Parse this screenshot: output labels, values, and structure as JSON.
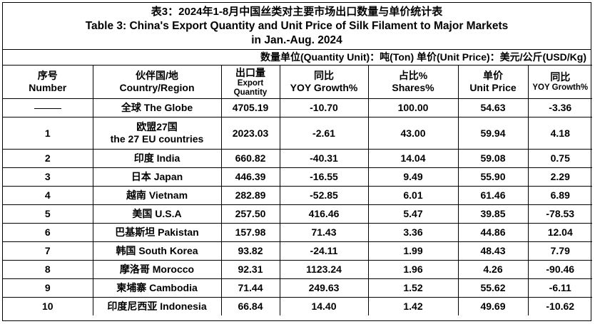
{
  "title": {
    "zh": "表3：2024年1-8月中国丝类对主要市场出口数量与单价统计表",
    "en_line1": "Table 3: China's Export Quantity and Unit Price of Silk Filament to Major Markets",
    "en_line2": "in Jan.-Aug. 2024"
  },
  "units_note": "数量单位(Quantity Unit)：吨(Ton)  单价(Unit Price)：美元/公斤(USD/Kg)",
  "headers": [
    {
      "zh": "序号",
      "en": "Number"
    },
    {
      "zh": "伙伴国/地",
      "en": "Country/Region"
    },
    {
      "zh": "出口量",
      "en": "Export Quantity"
    },
    {
      "zh": "同比",
      "en": "YOY Growth%"
    },
    {
      "zh": "占比%",
      "en": "Shares%"
    },
    {
      "zh": "单价",
      "en": "Unit Price"
    },
    {
      "zh": "同比",
      "en": "YOY Growth%"
    }
  ],
  "rows": [
    {
      "no": "",
      "country": "全球 The Globe",
      "country2": "",
      "qty": "4705.19",
      "yoy": "-10.70",
      "share": "100.00",
      "price": "54.63",
      "price_yoy": "-3.36"
    },
    {
      "no": "1",
      "country": "欧盟27国",
      "country2": "the 27 EU countries",
      "qty": "2023.03",
      "yoy": "-2.61",
      "share": "43.00",
      "price": "59.94",
      "price_yoy": "4.18"
    },
    {
      "no": "2",
      "country": "印度 India",
      "country2": "",
      "qty": "660.82",
      "yoy": "-40.31",
      "share": "14.04",
      "price": "59.08",
      "price_yoy": "0.75"
    },
    {
      "no": "3",
      "country": "日本 Japan",
      "country2": "",
      "qty": "446.39",
      "yoy": "-16.55",
      "share": "9.49",
      "price": "55.90",
      "price_yoy": "2.29"
    },
    {
      "no": "4",
      "country": "越南 Vietnam",
      "country2": "",
      "qty": "282.89",
      "yoy": "-52.85",
      "share": "6.01",
      "price": "61.46",
      "price_yoy": "6.89"
    },
    {
      "no": "5",
      "country": "美国 U.S.A",
      "country2": "",
      "qty": "257.50",
      "yoy": "416.46",
      "share": "5.47",
      "price": "39.85",
      "price_yoy": "-78.53"
    },
    {
      "no": "6",
      "country": "巴基斯坦 Pakistan",
      "country2": "",
      "qty": "157.98",
      "yoy": "71.43",
      "share": "3.36",
      "price": "44.86",
      "price_yoy": "12.04"
    },
    {
      "no": "7",
      "country": "韩国 South Korea",
      "country2": "",
      "qty": "93.82",
      "yoy": "-24.11",
      "share": "1.99",
      "price": "48.43",
      "price_yoy": "7.79"
    },
    {
      "no": "8",
      "country": "摩洛哥 Morocco",
      "country2": "",
      "qty": "92.31",
      "yoy": "1123.24",
      "share": "1.96",
      "price": "4.26",
      "price_yoy": "-90.46"
    },
    {
      "no": "9",
      "country": "柬埔寨 Cambodia",
      "country2": "",
      "qty": "71.44",
      "yoy": "249.63",
      "share": "1.52",
      "price": "55.62",
      "price_yoy": "-6.11"
    },
    {
      "no": "10",
      "country": "印度尼西亚 Indonesia",
      "country2": "",
      "qty": "66.84",
      "yoy": "14.40",
      "share": "1.42",
      "price": "49.69",
      "price_yoy": "-10.62"
    }
  ]
}
